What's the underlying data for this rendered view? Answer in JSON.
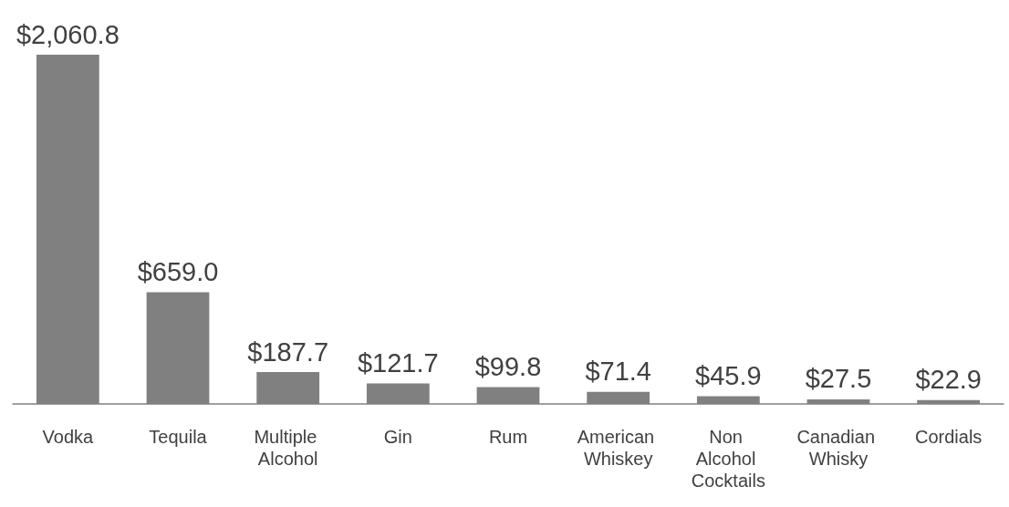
{
  "chart_data": {
    "type": "bar",
    "categories": [
      "Vodka",
      "Tequila",
      "Multiple Alcohol",
      "Gin",
      "Rum",
      "American Whiskey",
      "Non Alcohol Cocktails",
      "Canadian Whisky",
      "Cordials"
    ],
    "values": [
      2060.8,
      659.0,
      187.7,
      121.7,
      99.8,
      71.4,
      45.9,
      27.5,
      22.9
    ],
    "value_labels": [
      "$2,060.8",
      "$659.0",
      "$187.7",
      "$121.7",
      "$99.8",
      "$71.4",
      "$45.9",
      "$27.5",
      "$22.9"
    ],
    "color": "#808080"
  }
}
